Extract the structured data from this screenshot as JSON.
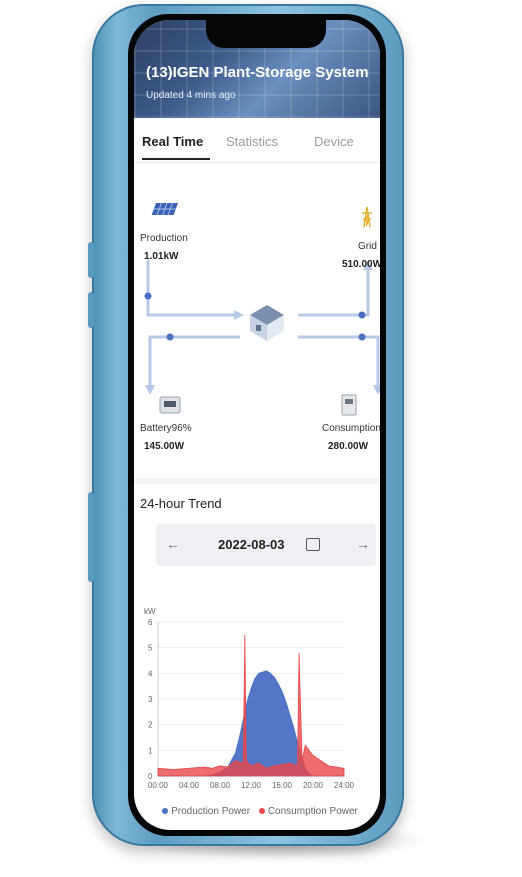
{
  "app": {
    "title": "(13)IGEN Plant-Storage System",
    "updated": "Updated 4 mins ago"
  },
  "tabs": [
    {
      "label": "Real Time",
      "active": true
    },
    {
      "label": "Statistics",
      "active": false
    },
    {
      "label": "Device",
      "active": false
    }
  ],
  "flow": {
    "production": {
      "label": "Production",
      "value": "1.01kW",
      "icon": "solar-panel-icon"
    },
    "grid": {
      "label": "Grid",
      "value": "510.00W",
      "icon": "grid-tower-icon"
    },
    "battery": {
      "label": "Battery96%",
      "value": "145.00W",
      "icon": "battery-icon"
    },
    "consumption": {
      "label": "Consumption",
      "value": "280.00W",
      "icon": "house-appliance-icon"
    },
    "center_icon": "house-icon"
  },
  "trend": {
    "title": "24-hour Trend",
    "date": "2022-08-03",
    "prev_icon": "arrow-left-icon",
    "next_icon": "arrow-right-icon",
    "calendar_icon": "calendar-icon"
  },
  "colors": {
    "production": "#4a6fc4",
    "consumption": "#e8474a",
    "flow_line": "#b7c9e6"
  },
  "chart_data": {
    "type": "area",
    "title": "",
    "xlabel": "",
    "ylabel": "kW",
    "yticks": [
      "0",
      "1",
      "2",
      "3",
      "4",
      "5",
      "6"
    ],
    "ylim": [
      0,
      6
    ],
    "xticks": [
      "00:00",
      "04:00",
      "08:00",
      "12:00",
      "16:00",
      "20:00",
      "24:00"
    ],
    "xlim": [
      0,
      24
    ],
    "grid": true,
    "legend_position": "bottom",
    "series": [
      {
        "name": "Production Power",
        "x": [
          0,
          6,
          7,
          8,
          9,
          10,
          10.5,
          11,
          11.5,
          12,
          12.5,
          13,
          13.5,
          14,
          14.5,
          15,
          15.5,
          16,
          16.5,
          17,
          17.5,
          18,
          18.5,
          19,
          19.5,
          20,
          24
        ],
        "values": [
          0,
          0,
          0.05,
          0.15,
          0.35,
          0.9,
          1.5,
          2.2,
          2.9,
          3.4,
          3.8,
          4.0,
          4.05,
          4.1,
          4.0,
          3.85,
          3.6,
          3.3,
          2.9,
          2.4,
          1.9,
          1.3,
          0.8,
          0.3,
          0.1,
          0,
          0
        ]
      },
      {
        "name": "Consumption Power",
        "x": [
          0,
          2,
          4,
          6,
          7,
          8,
          9,
          10,
          11,
          11.2,
          11.4,
          12,
          13,
          14,
          15,
          16,
          17,
          18,
          18.2,
          18.6,
          19,
          20,
          21,
          22,
          24
        ],
        "values": [
          0.3,
          0.25,
          0.3,
          0.35,
          0.3,
          0.4,
          0.35,
          0.6,
          0.5,
          5.5,
          0.6,
          0.4,
          0.5,
          0.3,
          0.4,
          0.45,
          0.5,
          0.4,
          4.8,
          0.6,
          1.2,
          0.8,
          0.6,
          0.4,
          0.3
        ]
      }
    ]
  }
}
